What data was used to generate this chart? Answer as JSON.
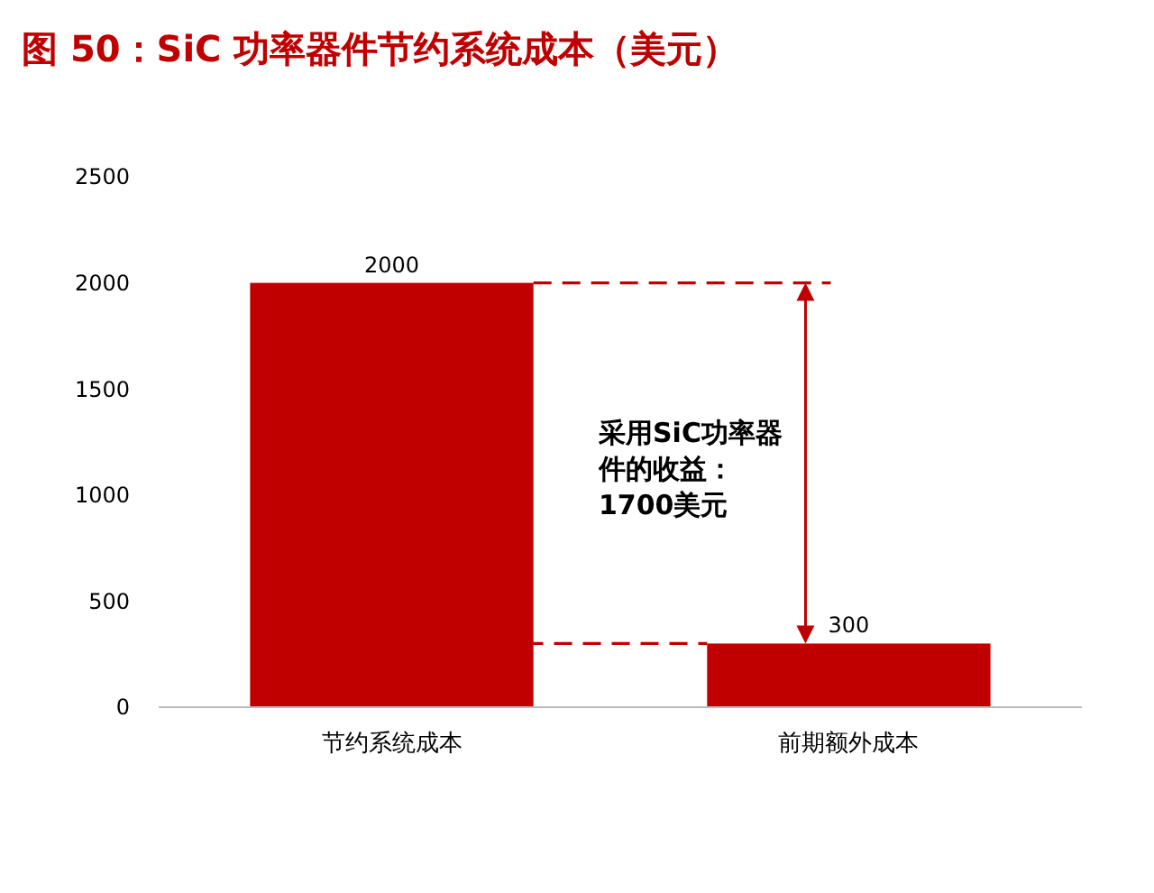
{
  "chart_data": {
    "type": "bar",
    "title": "图 50：SiC 功率器件节约系统成本（美元）",
    "categories": [
      "节约系统成本",
      "前期额外成本"
    ],
    "values": [
      2000,
      300
    ],
    "color": "#c00000",
    "ylim": [
      0,
      2500
    ],
    "yticks": [
      0,
      500,
      1000,
      1500,
      2000,
      2500
    ],
    "data_labels": true,
    "grid": false,
    "ref_lines": [
      {
        "axis": "y",
        "value": 2000,
        "color": "#c00000",
        "line_style": "dashed"
      },
      {
        "axis": "y",
        "value": 300,
        "color": "#c00000",
        "line_style": "dashed"
      }
    ],
    "annotations": [
      "采用SiC功率器件的收益：1700美元"
    ]
  }
}
